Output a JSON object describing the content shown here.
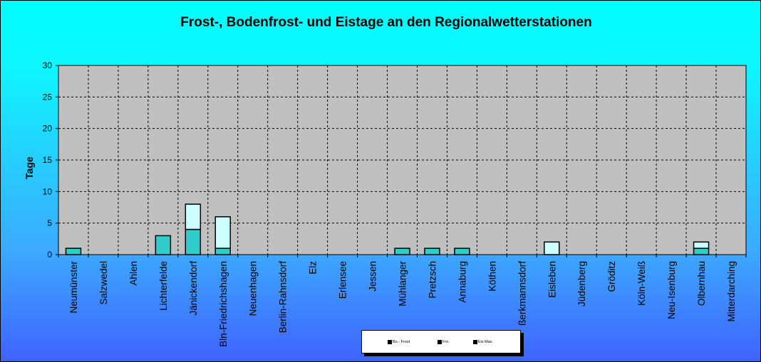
{
  "chart_data": {
    "type": "bar",
    "stacked": true,
    "title": "Frost-, Bodenfrost- und Eistage an den Regionalwetterstationen",
    "ylabel": "Tage",
    "ylim": [
      0,
      30
    ],
    "yticks": [
      "0",
      "5",
      "10",
      "15",
      "20",
      "25",
      "30"
    ],
    "grid": true,
    "legend_position": "bottom",
    "categories": [
      "Neumünster",
      "Salzwedel",
      "Ahlen",
      "Lichterfelde",
      "Jänickendorf",
      "Bln-Friedrichshagen",
      "Neuenhagen",
      "Berlin-Rahnsdorf",
      "Elz",
      "Erlensee",
      "Jessen",
      "Mühlanger",
      "Pretzsch",
      "Annaburg",
      "Köthen",
      "ßerkmannsdorf",
      "Eisleben",
      "Jüdenberg",
      "Gröditz",
      "Köln-Weiß",
      "Neu-Isenburg",
      "Olbernhau",
      "Mitterdarching"
    ],
    "series": [
      {
        "name": "Bo.- Frost",
        "color": "#33cccc",
        "values": [
          1,
          0,
          0,
          3,
          4,
          1,
          0,
          0,
          0,
          0,
          0,
          1,
          1,
          1,
          0,
          0,
          0,
          0,
          0,
          0,
          0,
          1,
          0
        ]
      },
      {
        "name": "Fro.",
        "color": "#ccffff",
        "values": [
          0,
          0,
          0,
          0,
          4,
          5,
          0,
          0,
          0,
          0,
          0,
          0,
          0,
          0,
          0,
          0,
          2,
          0,
          0,
          0,
          0,
          1,
          0
        ]
      },
      {
        "name": "Eis Max.",
        "color": "#000080",
        "values": [
          0,
          0,
          0,
          0,
          0,
          0,
          0,
          0,
          0,
          0,
          0,
          0,
          0,
          0,
          0,
          0,
          0,
          0,
          0,
          0,
          0,
          0,
          0
        ]
      }
    ],
    "plot_background": "#c0c0c0"
  }
}
